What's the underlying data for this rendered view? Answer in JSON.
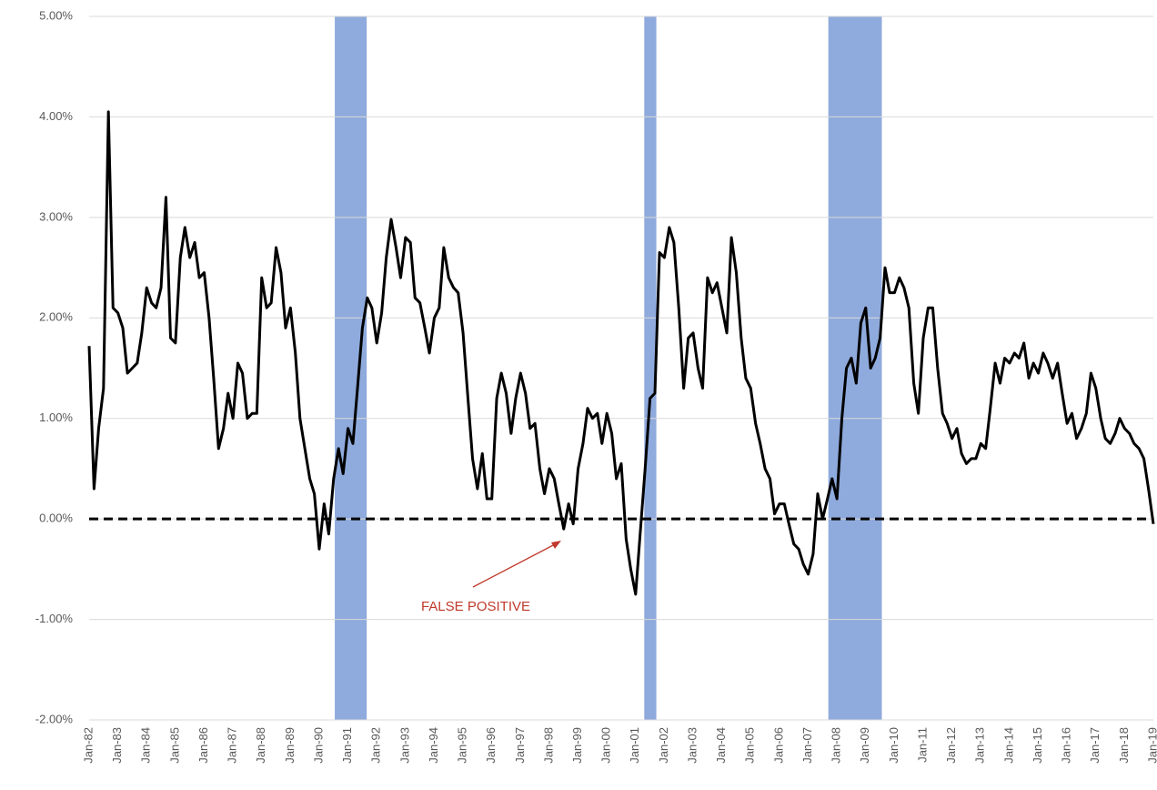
{
  "chart_data": {
    "type": "line",
    "x": [
      1982,
      1982.17,
      1982.33,
      1982.5,
      1982.67,
      1982.83,
      1983,
      1983.17,
      1983.33,
      1983.5,
      1983.67,
      1983.83,
      1984,
      1984.17,
      1984.33,
      1984.5,
      1984.67,
      1984.83,
      1985,
      1985.17,
      1985.33,
      1985.5,
      1985.67,
      1985.83,
      1986,
      1986.17,
      1986.33,
      1986.5,
      1986.67,
      1986.83,
      1987,
      1987.17,
      1987.33,
      1987.5,
      1987.67,
      1987.83,
      1988,
      1988.17,
      1988.33,
      1988.5,
      1988.67,
      1988.83,
      1989,
      1989.17,
      1989.33,
      1989.5,
      1989.67,
      1989.83,
      1990,
      1990.17,
      1990.33,
      1990.5,
      1990.67,
      1990.83,
      1991,
      1991.17,
      1991.33,
      1991.5,
      1991.67,
      1991.83,
      1992,
      1992.17,
      1992.33,
      1992.5,
      1992.67,
      1992.83,
      1993,
      1993.17,
      1993.33,
      1993.5,
      1993.67,
      1993.83,
      1994,
      1994.17,
      1994.33,
      1994.5,
      1994.67,
      1994.83,
      1995,
      1995.17,
      1995.33,
      1995.5,
      1995.67,
      1995.83,
      1996,
      1996.17,
      1996.33,
      1996.5,
      1996.67,
      1996.83,
      1997,
      1997.17,
      1997.33,
      1997.5,
      1997.67,
      1997.83,
      1998,
      1998.17,
      1998.33,
      1998.5,
      1998.67,
      1998.83,
      1999,
      1999.17,
      1999.33,
      1999.5,
      1999.67,
      1999.83,
      2000,
      2000.17,
      2000.33,
      2000.5,
      2000.67,
      2000.83,
      2001,
      2001.17,
      2001.33,
      2001.5,
      2001.67,
      2001.83,
      2002,
      2002.17,
      2002.33,
      2002.5,
      2002.67,
      2002.83,
      2003,
      2003.17,
      2003.33,
      2003.5,
      2003.67,
      2003.83,
      2004,
      2004.17,
      2004.33,
      2004.5,
      2004.67,
      2004.83,
      2005,
      2005.17,
      2005.33,
      2005.5,
      2005.67,
      2005.83,
      2006,
      2006.17,
      2006.33,
      2006.5,
      2006.67,
      2006.83,
      2007,
      2007.17,
      2007.33,
      2007.5,
      2007.67,
      2007.83,
      2008,
      2008.17,
      2008.33,
      2008.5,
      2008.67,
      2008.83,
      2009,
      2009.17,
      2009.33,
      2009.5,
      2009.67,
      2009.83,
      2010,
      2010.17,
      2010.33,
      2010.5,
      2010.67,
      2010.83,
      2011,
      2011.17,
      2011.33,
      2011.5,
      2011.67,
      2011.83,
      2012,
      2012.17,
      2012.33,
      2012.5,
      2012.67,
      2012.83,
      2013,
      2013.17,
      2013.33,
      2013.5,
      2013.67,
      2013.83,
      2014,
      2014.17,
      2014.33,
      2014.5,
      2014.67,
      2014.83,
      2015,
      2015.17,
      2015.33,
      2015.5,
      2015.67,
      2015.83,
      2016,
      2016.17,
      2016.33,
      2016.5,
      2016.67,
      2016.83,
      2017,
      2017.17,
      2017.33,
      2017.5,
      2017.67,
      2017.83,
      2018,
      2018.17,
      2018.33,
      2018.5,
      2018.67,
      2018.83,
      2019
    ],
    "series": [
      {
        "color": "#000000",
        "values": [
          1.72,
          0.3,
          0.9,
          1.3,
          4.05,
          2.1,
          2.05,
          1.9,
          1.45,
          1.5,
          1.55,
          1.85,
          2.3,
          2.15,
          2.1,
          2.3,
          3.2,
          1.8,
          1.75,
          2.6,
          2.9,
          2.6,
          2.75,
          2.4,
          2.45,
          2.0,
          1.4,
          0.7,
          0.9,
          1.25,
          1.0,
          1.55,
          1.45,
          1.0,
          1.05,
          1.05,
          2.4,
          2.1,
          2.15,
          2.7,
          2.45,
          1.9,
          2.1,
          1.65,
          1.0,
          0.7,
          0.4,
          0.25,
          -0.3,
          0.15,
          -0.15,
          0.4,
          0.7,
          0.45,
          0.9,
          0.75,
          1.3,
          1.9,
          2.2,
          2.1,
          1.75,
          2.05,
          2.6,
          2.98,
          2.7,
          2.4,
          2.8,
          2.75,
          2.2,
          2.15,
          1.9,
          1.65,
          2.0,
          2.1,
          2.7,
          2.4,
          2.3,
          2.25,
          1.85,
          1.2,
          0.6,
          0.3,
          0.65,
          0.2,
          0.2,
          1.2,
          1.45,
          1.25,
          0.85,
          1.2,
          1.45,
          1.25,
          0.9,
          0.95,
          0.5,
          0.25,
          0.5,
          0.4,
          0.15,
          -0.1,
          0.15,
          -0.05,
          0.5,
          0.75,
          1.1,
          1.0,
          1.05,
          0.75,
          1.05,
          0.85,
          0.4,
          0.55,
          -0.2,
          -0.5,
          -0.75,
          -0.1,
          0.5,
          1.2,
          1.25,
          2.65,
          2.6,
          2.9,
          2.75,
          2.1,
          1.3,
          1.8,
          1.85,
          1.5,
          1.3,
          2.4,
          2.25,
          2.35,
          2.1,
          1.85,
          2.8,
          2.45,
          1.8,
          1.4,
          1.3,
          0.95,
          0.75,
          0.5,
          0.4,
          0.05,
          0.15,
          0.15,
          -0.05,
          -0.25,
          -0.3,
          -0.45,
          -0.55,
          -0.35,
          0.25,
          0.0,
          0.2,
          0.4,
          0.2,
          1.0,
          1.5,
          1.6,
          1.35,
          1.95,
          2.1,
          1.5,
          1.6,
          1.8,
          2.5,
          2.25,
          2.25,
          2.4,
          2.3,
          2.1,
          1.35,
          1.05,
          1.8,
          2.1,
          2.1,
          1.5,
          1.05,
          0.95,
          0.8,
          0.9,
          0.65,
          0.55,
          0.6,
          0.6,
          0.75,
          0.7,
          1.1,
          1.55,
          1.35,
          1.6,
          1.55,
          1.65,
          1.6,
          1.75,
          1.4,
          1.55,
          1.45,
          1.65,
          1.55,
          1.4,
          1.55,
          1.25,
          0.95,
          1.05,
          0.8,
          0.9,
          1.05,
          1.45,
          1.3,
          1.0,
          0.8,
          0.75,
          0.85,
          1.0,
          0.9,
          0.85,
          0.75,
          0.7,
          0.6,
          0.3,
          -0.05
        ]
      }
    ],
    "xlim": [
      1982,
      2019
    ],
    "xticks": [
      {
        "value": 1982,
        "label": "Jan-82"
      },
      {
        "value": 1983,
        "label": "Jan-83"
      },
      {
        "value": 1984,
        "label": "Jan-84"
      },
      {
        "value": 1985,
        "label": "Jan-85"
      },
      {
        "value": 1986,
        "label": "Jan-86"
      },
      {
        "value": 1987,
        "label": "Jan-87"
      },
      {
        "value": 1988,
        "label": "Jan-88"
      },
      {
        "value": 1989,
        "label": "Jan-89"
      },
      {
        "value": 1990,
        "label": "Jan-90"
      },
      {
        "value": 1991,
        "label": "Jan-91"
      },
      {
        "value": 1992,
        "label": "Jan-92"
      },
      {
        "value": 1993,
        "label": "Jan-93"
      },
      {
        "value": 1994,
        "label": "Jan-94"
      },
      {
        "value": 1995,
        "label": "Jan-95"
      },
      {
        "value": 1996,
        "label": "Jan-96"
      },
      {
        "value": 1997,
        "label": "Jan-97"
      },
      {
        "value": 1998,
        "label": "Jan-98"
      },
      {
        "value": 1999,
        "label": "Jan-99"
      },
      {
        "value": 2000,
        "label": "Jan-00"
      },
      {
        "value": 2001,
        "label": "Jan-01"
      },
      {
        "value": 2002,
        "label": "Jan-02"
      },
      {
        "value": 2003,
        "label": "Jan-03"
      },
      {
        "value": 2004,
        "label": "Jan-04"
      },
      {
        "value": 2005,
        "label": "Jan-05"
      },
      {
        "value": 2006,
        "label": "Jan-06"
      },
      {
        "value": 2007,
        "label": "Jan-07"
      },
      {
        "value": 2008,
        "label": "Jan-08"
      },
      {
        "value": 2009,
        "label": "Jan-09"
      },
      {
        "value": 2010,
        "label": "Jan-10"
      },
      {
        "value": 2011,
        "label": "Jan-11"
      },
      {
        "value": 2012,
        "label": "Jan-12"
      },
      {
        "value": 2013,
        "label": "Jan-13"
      },
      {
        "value": 2014,
        "label": "Jan-14"
      },
      {
        "value": 2015,
        "label": "Jan-15"
      },
      {
        "value": 2016,
        "label": "Jan-16"
      },
      {
        "value": 2017,
        "label": "Jan-17"
      },
      {
        "value": 2018,
        "label": "Jan-18"
      },
      {
        "value": 2019,
        "label": "Jan-19"
      }
    ],
    "ylim": [
      -2,
      5
    ],
    "yticks": [
      {
        "value": -2,
        "label": "-2.00%"
      },
      {
        "value": -1,
        "label": "-1.00%"
      },
      {
        "value": 0,
        "label": "0.00%"
      },
      {
        "value": 1,
        "label": "1.00%"
      },
      {
        "value": 2,
        "label": "2.00%"
      },
      {
        "value": 3,
        "label": "3.00%"
      },
      {
        "value": 4,
        "label": "4.00%"
      },
      {
        "value": 5,
        "label": "5.00%"
      }
    ],
    "grid": true,
    "hline": 0,
    "shaded_regions": [
      [
        1990.54,
        1991.65
      ],
      [
        2001.3,
        2001.72
      ],
      [
        2007.7,
        2009.56
      ]
    ],
    "shade_color": "#8faadc",
    "annotation": "FALSE POSITIVE"
  }
}
